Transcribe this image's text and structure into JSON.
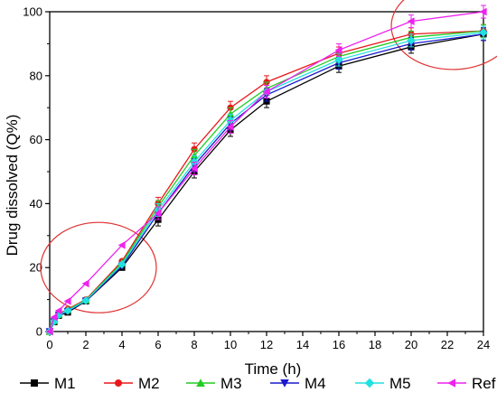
{
  "chart_data": {
    "type": "line",
    "xlabel": "Time (h)",
    "ylabel": "Drug dissolved (Q%)",
    "xlim": [
      0,
      24
    ],
    "ylim": [
      0,
      100
    ],
    "x_ticks": [
      0,
      2,
      4,
      6,
      8,
      10,
      12,
      14,
      16,
      18,
      20,
      22,
      24
    ],
    "y_ticks": [
      0,
      20,
      40,
      60,
      80,
      100
    ],
    "grid": false,
    "legend_position": "bottom",
    "x": [
      0,
      0.25,
      0.5,
      1,
      2,
      4,
      6,
      8,
      10,
      12,
      16,
      20,
      24
    ],
    "series": [
      {
        "name": "M1",
        "color": "#000000",
        "marker": "square",
        "values": [
          0,
          3,
          5,
          6,
          9.5,
          20,
          35,
          50,
          63,
          72,
          83,
          89,
          93
        ]
      },
      {
        "name": "M2",
        "color": "#e8191c",
        "marker": "circle",
        "values": [
          0,
          3.5,
          5.5,
          7,
          10,
          22,
          40,
          57,
          70,
          78,
          87,
          93,
          94
        ]
      },
      {
        "name": "M3",
        "color": "#22cc22",
        "marker": "triangle-up",
        "values": [
          0,
          3.3,
          5.3,
          6.8,
          9.8,
          21.5,
          39,
          55,
          68,
          76,
          86,
          92,
          94
        ]
      },
      {
        "name": "M4",
        "color": "#1a1acc",
        "marker": "triangle-down",
        "values": [
          0,
          3.1,
          5.1,
          6.3,
          9.6,
          20.5,
          37,
          52,
          65,
          74,
          84,
          90,
          93
        ]
      },
      {
        "name": "M5",
        "color": "#22e0e0",
        "marker": "diamond",
        "values": [
          0,
          3.2,
          5.2,
          6.5,
          9.7,
          21,
          38,
          53,
          66,
          75,
          85,
          91,
          93.5
        ]
      },
      {
        "name": "Ref",
        "color": "#ee22ee",
        "marker": "triangle-left",
        "values": [
          0,
          4.5,
          6.5,
          9.5,
          15,
          27,
          37,
          51,
          64,
          75,
          88,
          97,
          100
        ]
      }
    ],
    "annotations": [
      {
        "shape": "ellipse",
        "color": "#e03030",
        "center": {
          "x": 2.7,
          "y": 20
        }
      },
      {
        "shape": "ellipse",
        "color": "#e03030",
        "center": {
          "x": 22.3,
          "y": 95.5
        }
      }
    ]
  }
}
